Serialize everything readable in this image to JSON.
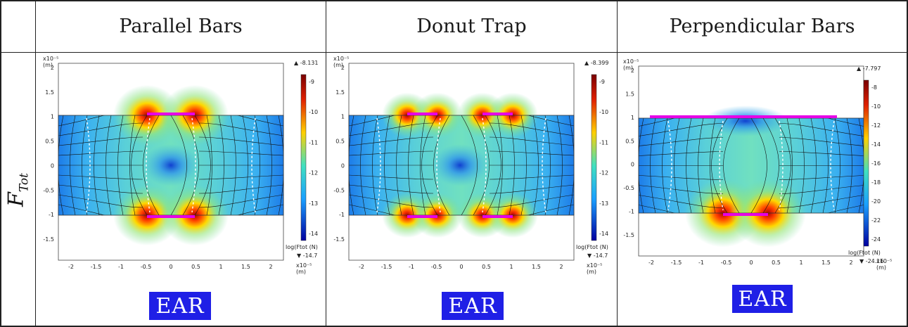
{
  "headers": [
    "Parallel Bars",
    "Donut Trap",
    "Perpendicular Bars"
  ],
  "row_label": {
    "main": "F",
    "sub": "Tot"
  },
  "ear_label": "EAR",
  "axis_exponent": "x10⁻⁵",
  "axis_unit": "(m)",
  "colorbar_title": "log(Ftot (N)",
  "colors": {
    "pad": "#e600e6",
    "ear_bg": "#1f1fe6",
    "grid": "#222222"
  },
  "panels": [
    {
      "name": "parallel-bars",
      "yticks": [
        "2",
        "1.5",
        "1",
        "0.5",
        "0",
        "-0.5",
        "-1",
        "-1.5"
      ],
      "xticks": [
        "-2",
        "-1.5",
        "-1",
        "-0.5",
        "0",
        "0.5",
        "1",
        "1.5",
        "2"
      ],
      "cb_max": "▲ -8.131",
      "cb_min": "▼ -14.7",
      "cb_ticks": [
        "-9",
        "-10",
        "-11",
        "-12",
        "-13",
        "-14"
      ]
    },
    {
      "name": "donut-trap",
      "yticks": [
        "2",
        "1.5",
        "1",
        "0.5",
        "0",
        "-0.5",
        "-1",
        "-1.5"
      ],
      "xticks": [
        "-2",
        "-1.5",
        "-1",
        "-0.5",
        "0",
        "0.5",
        "1",
        "1.5",
        "2"
      ],
      "cb_max": "▲ -8.399",
      "cb_min": "▼ -14.7",
      "cb_ticks": [
        "-9",
        "-10",
        "-11",
        "-12",
        "-13",
        "-14"
      ]
    },
    {
      "name": "perpendicular-bars",
      "yticks": [
        "2",
        "1.5",
        "1",
        "0.5",
        "0",
        "-0.5",
        "-1",
        "-1.5"
      ],
      "xticks": [
        "-2",
        "-1.5",
        "-1",
        "-0.5",
        "0",
        "0.5",
        "1",
        "1.5",
        "2"
      ],
      "cb_max": "▲ -7.797",
      "cb_min": "▼ -24.16",
      "cb_ticks": [
        "-8",
        "-10",
        "-12",
        "-14",
        "-16",
        "-18",
        "-20",
        "-22",
        "-24"
      ]
    }
  ]
}
